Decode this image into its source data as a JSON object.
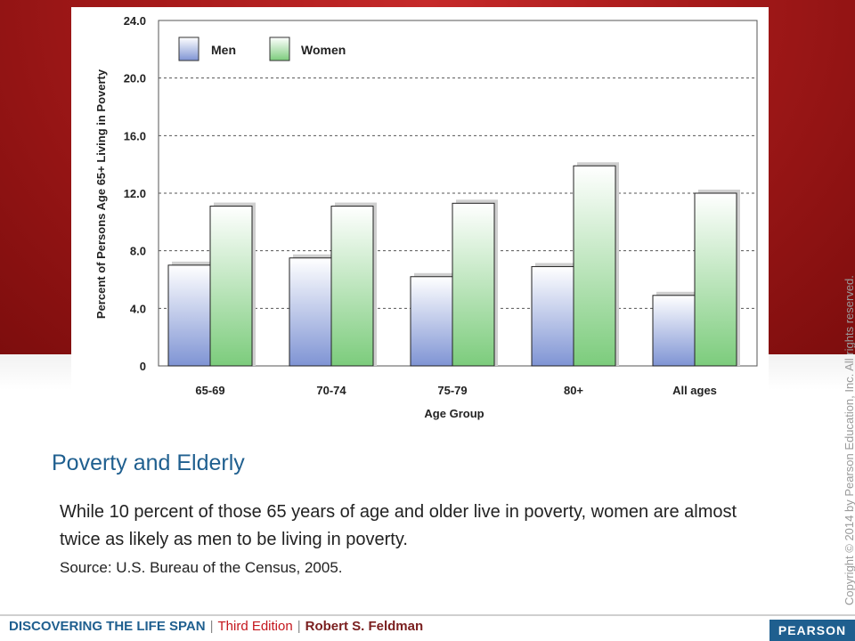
{
  "chart_data": {
    "type": "bar",
    "categories": [
      "65-69",
      "70-74",
      "75-79",
      "80+",
      "All ages"
    ],
    "series": [
      {
        "name": "Men",
        "values": [
          7.0,
          7.5,
          6.2,
          6.9,
          4.9
        ]
      },
      {
        "name": "Women",
        "values": [
          11.1,
          11.1,
          11.3,
          13.9,
          12.0
        ]
      }
    ],
    "xlabel": "Age Group",
    "ylabel": "Percent of Persons Age 65+ Living in Poverty",
    "ylim": [
      0,
      24
    ],
    "yticks": [
      "0",
      "4.0",
      "8.0",
      "12.0",
      "16.0",
      "20.0",
      "24.0"
    ],
    "grid": "dashed horizontal",
    "legend": "top-left",
    "colors": {
      "Men": "#7f94d4",
      "Women": "#7ccc7c"
    }
  },
  "slide": {
    "title": "Poverty and Elderly",
    "body": "While 10 percent of those 65 years of age and older live in poverty, women are almost twice as likely as men to be living in poverty.",
    "source": "Source: U.S. Bureau of the Census, 2005.",
    "copyright": "Copyright © 2014 by Pearson Education, Inc. All rights reserved."
  },
  "footer": {
    "book_title": "DISCOVERING THE LIFE SPAN",
    "separator": "|",
    "edition": "Third Edition",
    "author": "Robert S. Feldman",
    "publisher": "PEARSON"
  },
  "colors": {
    "accent_blue": "#1f5f8f",
    "banner_red": "#a61a1a"
  }
}
